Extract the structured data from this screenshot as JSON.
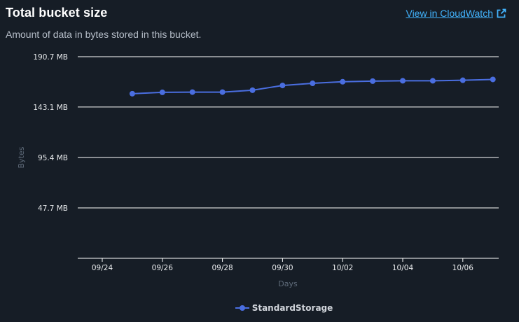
{
  "header": {
    "title": "Total bucket size",
    "link_label": "View in CloudWatch",
    "link_icon": "external-link-icon"
  },
  "subtitle": "Amount of data in bytes stored in this bucket.",
  "colors": {
    "background": "#161d26",
    "series": "#4a6ee0",
    "link": "#42b4ff",
    "grid": "#ffffff"
  },
  "legend": {
    "label": "StandardStorage"
  },
  "chart_data": {
    "type": "line",
    "title": "Total bucket size",
    "xlabel": "Days",
    "ylabel": "Bytes",
    "x": [
      "09/25",
      "09/26",
      "09/27",
      "09/28",
      "09/29",
      "09/30",
      "10/01",
      "10/02",
      "10/03",
      "10/04",
      "10/05",
      "10/06",
      "10/07"
    ],
    "x_ticks": [
      "09/24",
      "09/26",
      "09/28",
      "09/30",
      "10/02",
      "10/04",
      "10/06"
    ],
    "y_ticks": [
      {
        "value": 47.7,
        "label": "47.7 MB"
      },
      {
        "value": 95.4,
        "label": "95.4 MB"
      },
      {
        "value": 143.1,
        "label": "143.1 MB"
      },
      {
        "value": 190.7,
        "label": "190.7 MB"
      }
    ],
    "ylim": [
      0,
      190.7
    ],
    "y_unit": "MB",
    "grid": true,
    "legend_position": "bottom",
    "series": [
      {
        "name": "StandardStorage",
        "values": [
          155.7,
          157.0,
          157.2,
          157.2,
          159.0,
          163.5,
          165.5,
          167.0,
          167.6,
          167.9,
          167.9,
          168.4,
          169.2
        ]
      }
    ]
  }
}
